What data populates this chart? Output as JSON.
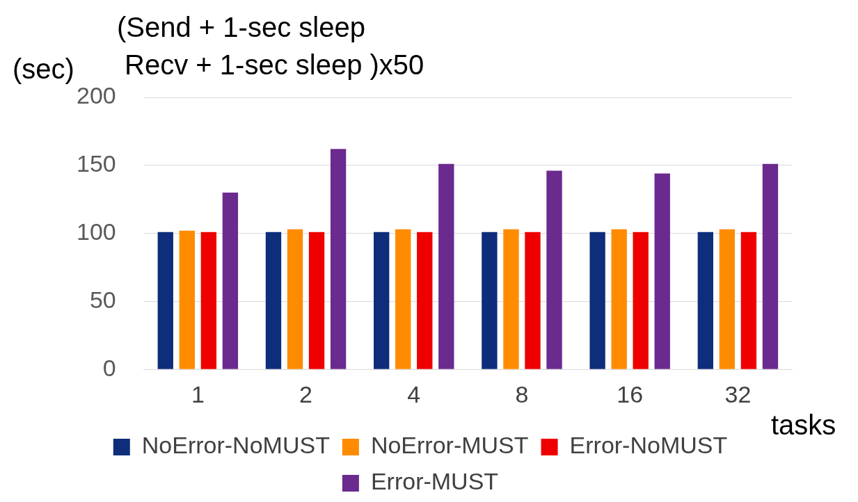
{
  "chart_data": {
    "type": "bar",
    "title": "(Send + 1-sec sleep\n Recv + 1-sec sleep )x50",
    "ylabel": "(sec)",
    "xlabel": "tasks",
    "categories": [
      "1",
      "2",
      "4",
      "8",
      "16",
      "32"
    ],
    "series": [
      {
        "name": "NoError-NoMUST",
        "color": "#0e2d7a",
        "values": [
          101,
          101,
          101,
          101,
          101,
          101
        ]
      },
      {
        "name": "NoError-MUST",
        "color": "#ff8c00",
        "values": [
          102,
          103,
          103,
          103,
          103,
          103
        ]
      },
      {
        "name": "Error-NoMUST",
        "color": "#ee0000",
        "values": [
          101,
          101,
          101,
          101,
          101,
          101
        ]
      },
      {
        "name": "Error-MUST",
        "color": "#6b2a8e",
        "values": [
          130,
          162,
          151,
          146,
          144,
          151
        ]
      }
    ],
    "ylim": [
      0,
      200
    ],
    "yticks": [
      0,
      50,
      100,
      150,
      200
    ],
    "grid": "y",
    "legend": "bottom"
  }
}
